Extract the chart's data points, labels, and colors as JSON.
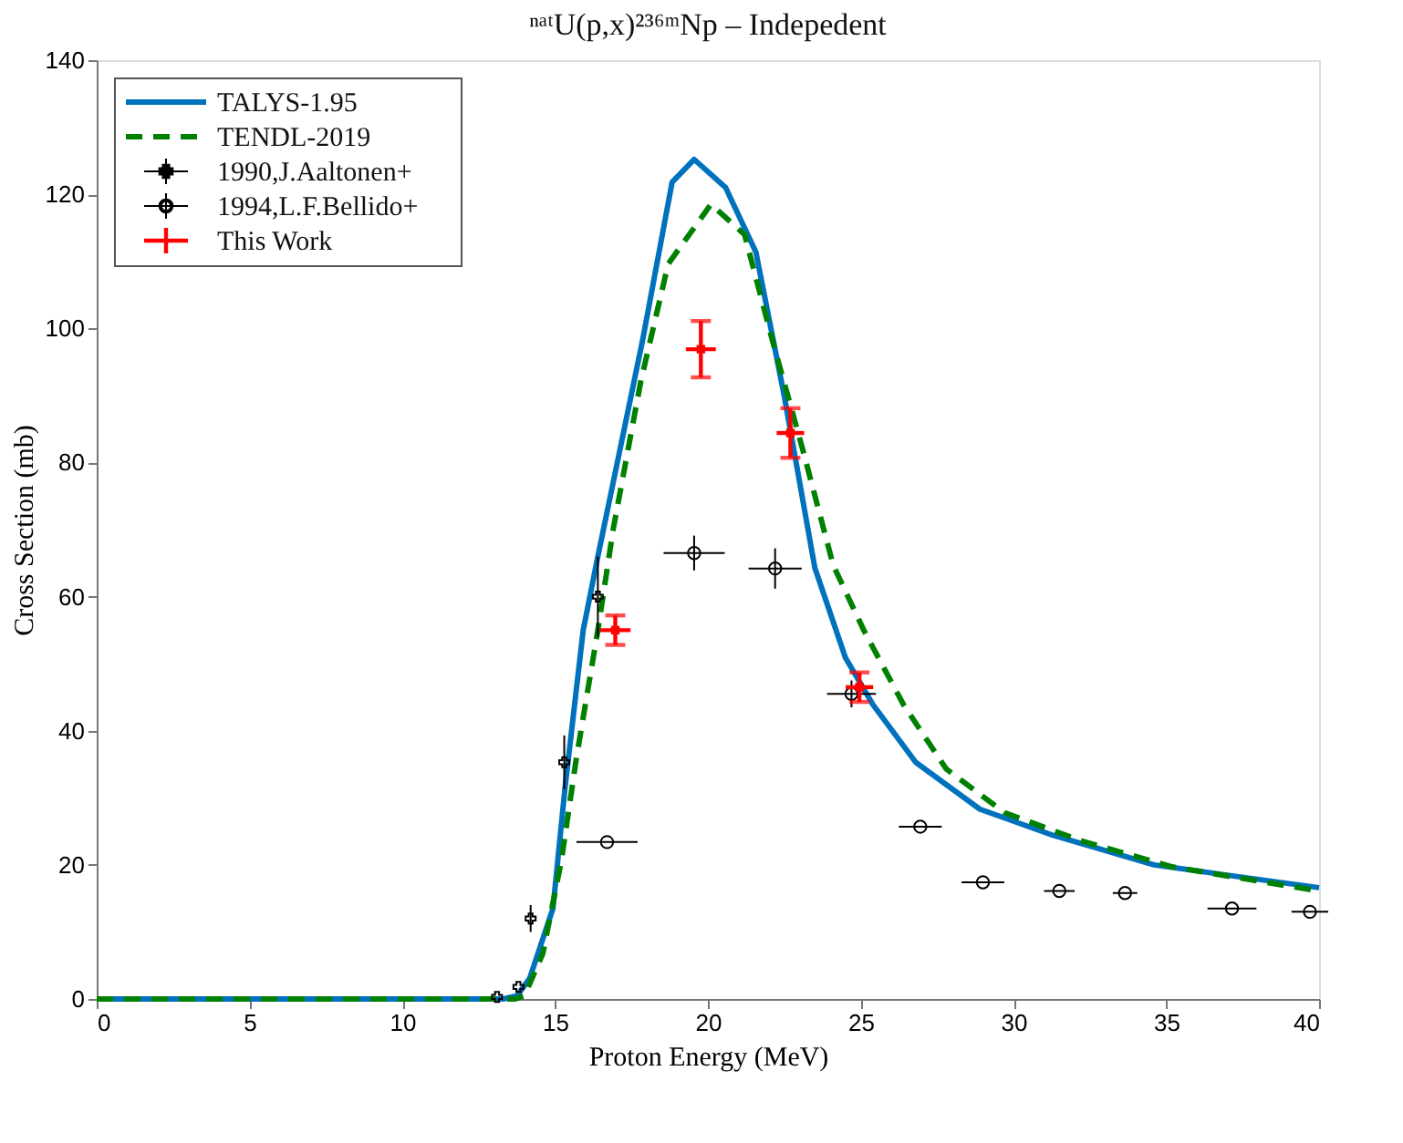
{
  "chart_data": {
    "type": "line",
    "title": "ⁿᵃᵗU(p,x)²³⁶ᵐNp – Indepedent",
    "xlabel": "Proton Energy (MeV)",
    "ylabel": "Cross Section (mb)",
    "xlim": [
      0,
      40
    ],
    "xticks": [
      0,
      5,
      10,
      15,
      20,
      25,
      30,
      35,
      40
    ],
    "ylim": [
      0,
      140
    ],
    "yticks": [
      0,
      20,
      40,
      60,
      80,
      100,
      120,
      140
    ],
    "grid": false,
    "legend": "top left",
    "series": [
      {
        "name": "TALYS-1.95",
        "color": "#0072bd",
        "line_style": "solid",
        "marker": "none",
        "x": [
          0,
          13.3,
          13.76,
          14.17,
          14.93,
          15.33,
          15.92,
          16.4,
          16.9,
          17.87,
          18.83,
          19.55,
          20.58,
          21.57,
          22.5,
          23.5,
          24.5,
          25.4,
          26.8,
          28.9,
          31.3,
          34.6,
          37.1,
          40
        ],
        "values": [
          0,
          0,
          0.5,
          3.1,
          13.5,
          31.7,
          55,
          66,
          77,
          98.4,
          121.8,
          125.2,
          121,
          111.4,
          89.9,
          64.3,
          50.9,
          43.9,
          35.3,
          28.3,
          24.4,
          20,
          18.4,
          16.6
        ]
      },
      {
        "name": "TENDL-2019",
        "color": "#008000",
        "line_style": "dashed",
        "marker": "none",
        "x": [
          0,
          13.7,
          14,
          14.6,
          15.2,
          15.7,
          16.4,
          16.9,
          17.8,
          18.7,
          20.1,
          21.2,
          22.1,
          23.1,
          24.1,
          25.1,
          26.4,
          27.8,
          29.7,
          32.2,
          35.2,
          40
        ],
        "values": [
          0,
          0,
          0.5,
          6.8,
          20.5,
          36,
          55,
          70,
          92,
          109.6,
          118.5,
          114,
          98.4,
          82,
          64.7,
          55,
          43.9,
          34.3,
          27.8,
          23.6,
          19.7,
          16.1
        ]
      },
      {
        "name": "1990,J.Aaltonen+",
        "type": "scatter",
        "color": "#000000",
        "marker": "cross",
        "x": [
          13.1,
          13.8,
          14.2,
          15.3,
          16.4
        ],
        "values": [
          0.3,
          1.8,
          12,
          35.3,
          60
        ],
        "errors": [
          null,
          null,
          2,
          4,
          6
        ]
      },
      {
        "name": "1994,L.F.Bellido+",
        "type": "scatter",
        "color": "#000000",
        "marker": "circle",
        "x": [
          16.7,
          19.55,
          22.2,
          24.7,
          26.95,
          29,
          31.5,
          33.65,
          37.15,
          39.7
        ],
        "values": [
          23.4,
          66.5,
          64.2,
          45.5,
          25.7,
          17.4,
          16.1,
          15.8,
          13.5,
          13
        ],
        "errors": [
          null,
          2.6,
          3,
          2,
          null,
          null,
          null,
          null,
          null,
          null
        ],
        "xerrors": [
          1.0,
          1.0,
          0.87,
          0.8,
          0.7,
          0.7,
          0.5,
          0.4,
          0.8,
          0.6
        ]
      },
      {
        "name": "This Work",
        "type": "scatter",
        "color": "#ff0000",
        "marker": "square",
        "x": [
          16.97,
          19.77,
          22.7,
          24.96
        ],
        "values": [
          55,
          96.9,
          84.4,
          46.5
        ],
        "errors": [
          2.2,
          4.2,
          3.7,
          2.2
        ],
        "xerrors": [
          0.5,
          0.49,
          0.45,
          0.45
        ]
      }
    ]
  }
}
